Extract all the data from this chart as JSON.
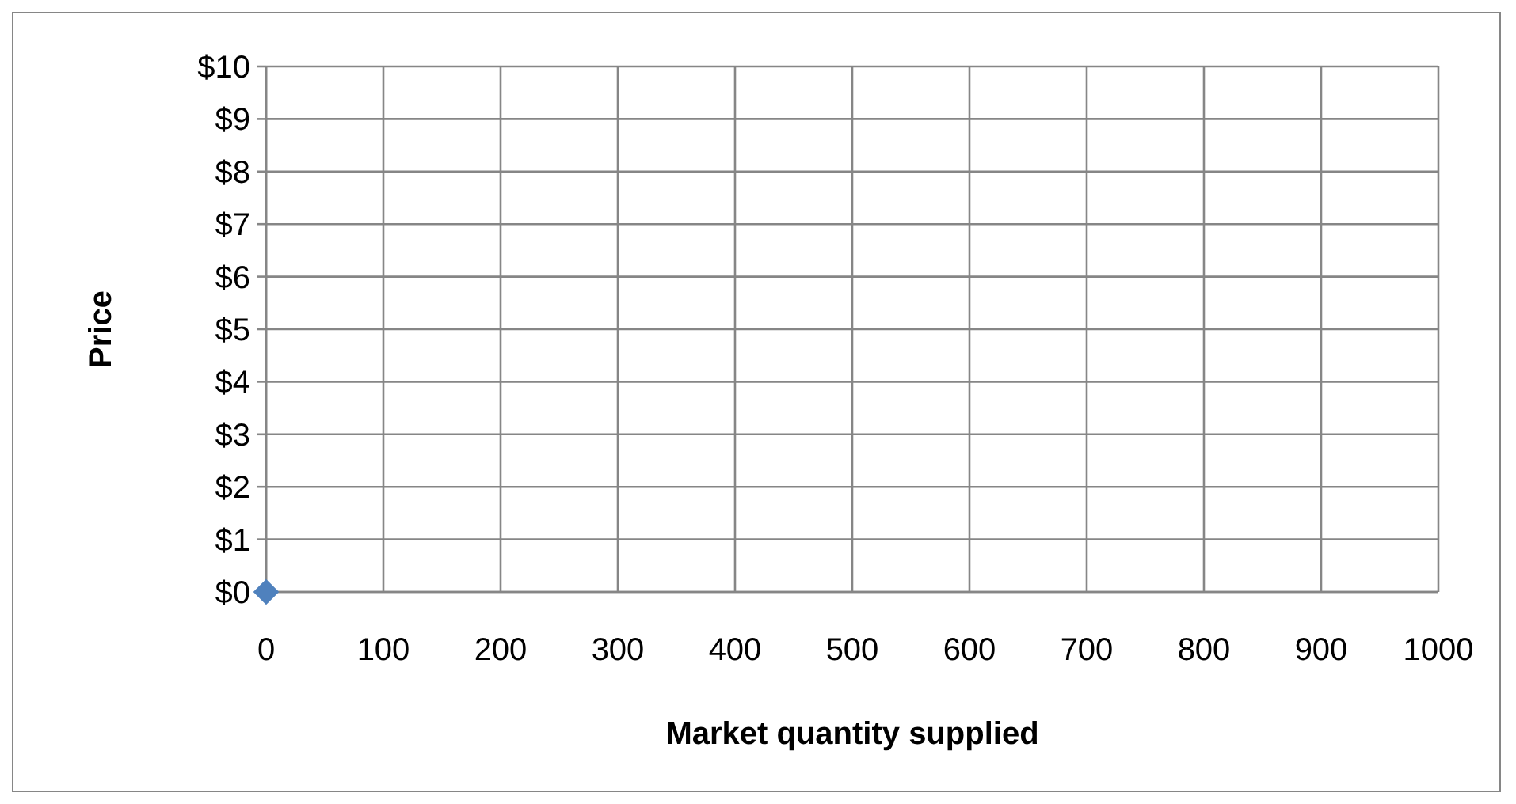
{
  "chart_data": {
    "type": "scatter",
    "xlabel": "Market quantity supplied",
    "ylabel": "Price",
    "x": [
      0
    ],
    "values": [
      0
    ],
    "color": "#4f81bd",
    "marker": "diamond",
    "xlim": [
      0,
      1000
    ],
    "xticks": [
      0,
      100,
      200,
      300,
      400,
      500,
      600,
      700,
      800,
      900,
      1000
    ],
    "ylim": [
      0,
      10
    ],
    "yticks": [
      {
        "value": 0,
        "label": "$0"
      },
      {
        "value": 1,
        "label": "$1"
      },
      {
        "value": 2,
        "label": "$2"
      },
      {
        "value": 3,
        "label": "$3"
      },
      {
        "value": 4,
        "label": "$4"
      },
      {
        "value": 5,
        "label": "$5"
      },
      {
        "value": 6,
        "label": "$6"
      },
      {
        "value": 7,
        "label": "$7"
      },
      {
        "value": 8,
        "label": "$8"
      },
      {
        "value": 9,
        "label": "$9"
      },
      {
        "value": 10,
        "label": "$10"
      }
    ],
    "grid": true
  }
}
